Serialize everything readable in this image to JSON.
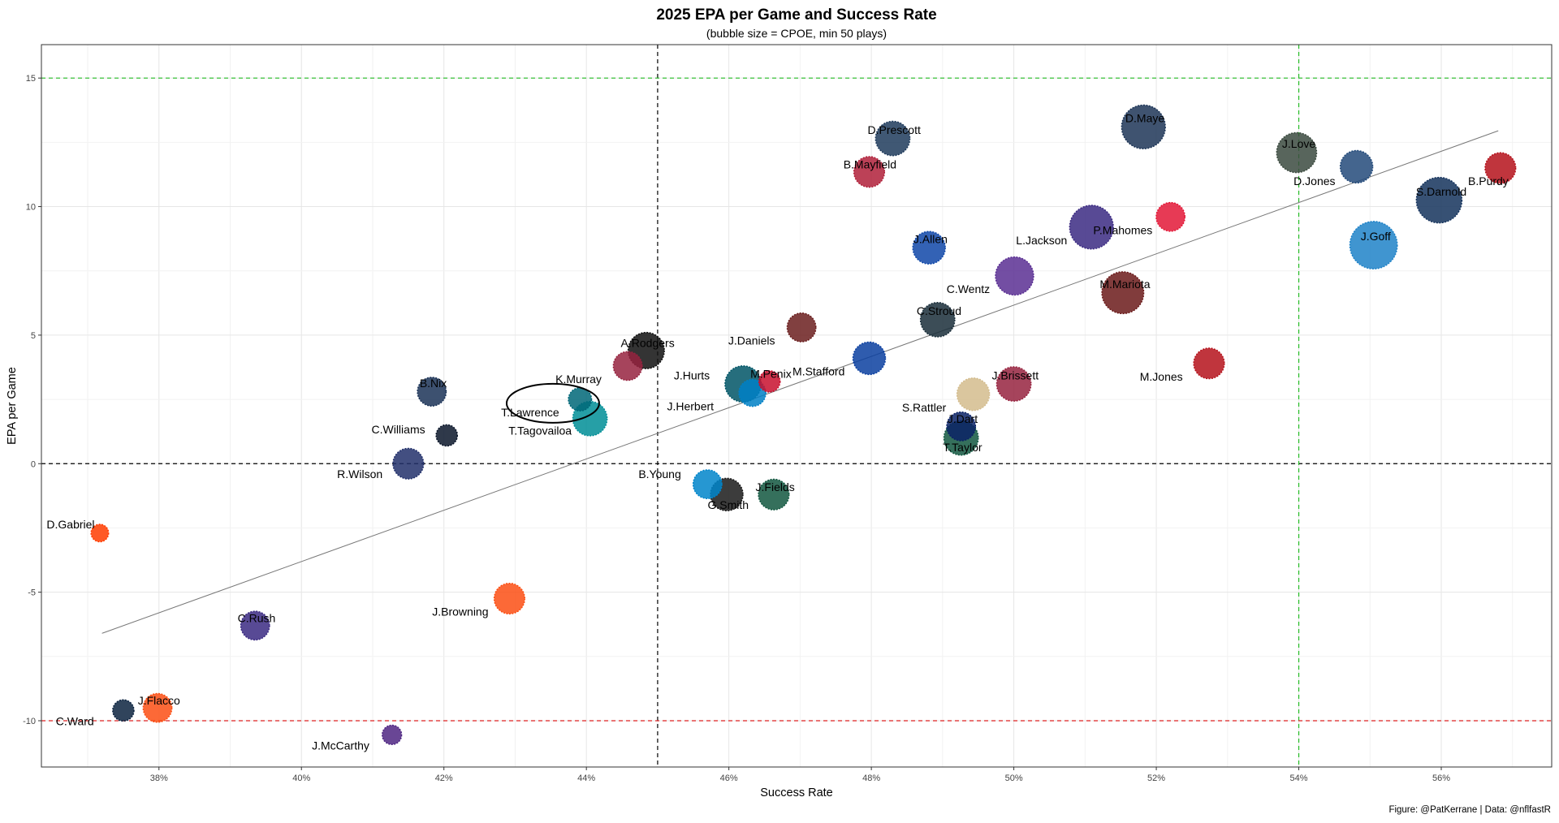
{
  "chart_data": {
    "type": "scatter",
    "title": "2025 EPA per Game and Success Rate",
    "subtitle": "(bubble size = CPOE, min 50 plays)",
    "xlabel": "Success Rate",
    "ylabel": "EPA per Game",
    "caption": "Figure: @PatKerrane | Data: @nflfastR",
    "xlim": [
      0.3635,
      0.5755
    ],
    "ylim": [
      -11.8,
      16.3
    ],
    "x_ticks": [
      {
        "value": 0.38,
        "label": "38%"
      },
      {
        "value": 0.4,
        "label": "40%"
      },
      {
        "value": 0.42,
        "label": "42%"
      },
      {
        "value": 0.44,
        "label": "44%"
      },
      {
        "value": 0.46,
        "label": "46%"
      },
      {
        "value": 0.48,
        "label": "48%"
      },
      {
        "value": 0.5,
        "label": "50%"
      },
      {
        "value": 0.52,
        "label": "52%"
      },
      {
        "value": 0.54,
        "label": "54%"
      },
      {
        "value": 0.56,
        "label": "56%"
      }
    ],
    "y_ticks": [
      {
        "value": -10,
        "label": "-10"
      },
      {
        "value": -5,
        "label": "-5"
      },
      {
        "value": 0,
        "label": "0"
      },
      {
        "value": 5,
        "label": "5"
      },
      {
        "value": 10,
        "label": "10"
      },
      {
        "value": 15,
        "label": "15"
      }
    ],
    "grid": true,
    "reference_lines": [
      {
        "axis": "x",
        "value": 0.45,
        "color": "#000000",
        "style": "dashed"
      },
      {
        "axis": "y",
        "value": 0,
        "color": "#000000",
        "style": "dashed"
      },
      {
        "axis": "x",
        "value": 0.54,
        "color": "#22bb22",
        "style": "dashed"
      },
      {
        "axis": "y",
        "value": 15,
        "color": "#22bb22",
        "style": "dashed"
      },
      {
        "axis": "y",
        "value": -10,
        "color": "#dd2222",
        "style": "dashed"
      }
    ],
    "trend_line": {
      "x": [
        0.372,
        0.568
      ],
      "y": [
        -6.6,
        12.95
      ],
      "color": "#777777"
    },
    "highlight": {
      "label": "T.Lawrence",
      "shape": "ellipse",
      "x": 0.4353,
      "y": 2.35
    },
    "points": [
      {
        "label": "D.Maye",
        "x": 0.5182,
        "y": 13.1,
        "size": 9.5,
        "color": "#1d3557",
        "lx": 0.5184,
        "ly": 13.4
      },
      {
        "label": "D.Prescott",
        "x": 0.483,
        "y": 12.65,
        "size": 7.0,
        "color": "#1f3b5c",
        "lx": 0.4832,
        "ly": 12.95
      },
      {
        "label": "J.Love",
        "x": 0.5397,
        "y": 12.1,
        "size": 8.5,
        "color": "#3b4a3f",
        "lx": 0.54,
        "ly": 12.4
      },
      {
        "label": "D.Jones",
        "x": 0.5481,
        "y": 11.55,
        "size": 6.5,
        "color": "#234a7a",
        "lx": 0.5422,
        "ly": 10.95
      },
      {
        "label": "B.Purdy",
        "x": 0.5683,
        "y": 11.5,
        "size": 6.0,
        "color": "#b5121b",
        "lx": 0.5666,
        "ly": 10.95
      },
      {
        "label": "B.Mayfield",
        "x": 0.4797,
        "y": 11.35,
        "size": 6.0,
        "color": "#b0203a",
        "lx": 0.4798,
        "ly": 11.6
      },
      {
        "label": "S.Darnold",
        "x": 0.5597,
        "y": 10.25,
        "size": 10.0,
        "color": "#14325c",
        "lx": 0.56,
        "ly": 10.55
      },
      {
        "label": "P.Mahomes",
        "x": 0.522,
        "y": 9.6,
        "size": 5.5,
        "color": "#e31837",
        "lx": 0.5153,
        "ly": 9.05
      },
      {
        "label": "L.Jackson",
        "x": 0.5109,
        "y": 9.2,
        "size": 9.5,
        "color": "#3b2a82",
        "lx": 0.5039,
        "ly": 8.65
      },
      {
        "label": "J.Goff",
        "x": 0.5505,
        "y": 8.5,
        "size": 10.5,
        "color": "#1f82c8",
        "lx": 0.5508,
        "ly": 8.8
      },
      {
        "label": "J.Allen",
        "x": 0.4881,
        "y": 8.4,
        "size": 6.5,
        "color": "#0f47a8",
        "lx": 0.4883,
        "ly": 8.7
      },
      {
        "label": "C.Wentz",
        "x": 0.5001,
        "y": 7.3,
        "size": 8.0,
        "color": "#5a2f93",
        "lx": 0.4936,
        "ly": 6.75
      },
      {
        "label": "M.Mariota",
        "x": 0.5153,
        "y": 6.65,
        "size": 9.0,
        "color": "#6b1a1a",
        "lx": 0.5156,
        "ly": 6.95
      },
      {
        "label": "C.Stroud",
        "x": 0.4893,
        "y": 5.6,
        "size": 7.0,
        "color": "#1a2e3a",
        "lx": 0.4895,
        "ly": 5.9
      },
      {
        "label": "J.Daniels",
        "x": 0.4702,
        "y": 5.3,
        "size": 5.5,
        "color": "#6b1e1e",
        "lx": 0.4632,
        "ly": 4.75
      },
      {
        "label": "A.Rodgers",
        "x": 0.4484,
        "y": 4.4,
        "size": 7.5,
        "color": "#111111",
        "lx": 0.4486,
        "ly": 4.65
      },
      {
        "label": "M.Stafford",
        "x": 0.4797,
        "y": 4.1,
        "size": 6.5,
        "color": "#0b3fa0",
        "lx": 0.4726,
        "ly": 3.55
      },
      {
        "label": "M.Jones",
        "x": 0.5274,
        "y": 3.9,
        "size": 6.0,
        "color": "#b5121b",
        "lx": 0.5207,
        "ly": 3.35
      },
      {
        "label": "K.Murray",
        "x": 0.4458,
        "y": 3.8,
        "size": 5.5,
        "color": "#97233f",
        "lx": 0.4389,
        "ly": 3.25
      },
      {
        "label": "M.Penix",
        "x": 0.4657,
        "y": 3.2,
        "size": 3.5,
        "color": "#c8102e",
        "lx": 0.4659,
        "ly": 3.45
      },
      {
        "label": "J.Hurts",
        "x": 0.462,
        "y": 3.1,
        "size": 7.5,
        "color": "#005566",
        "lx": 0.4548,
        "ly": 3.4
      },
      {
        "label": "J.Brissett",
        "x": 0.5,
        "y": 3.1,
        "size": 7.0,
        "color": "#97233f",
        "lx": 0.5002,
        "ly": 3.4
      },
      {
        "label": "B.Nix",
        "x": 0.4183,
        "y": 2.8,
        "size": 5.5,
        "color": "#1b3357",
        "lx": 0.4185,
        "ly": 3.1
      },
      {
        "label": "J.Herbert",
        "x": 0.4633,
        "y": 2.75,
        "size": 5.0,
        "color": "#0080c6",
        "lx": 0.4546,
        "ly": 2.2
      },
      {
        "label": "S.Rattler",
        "x": 0.4943,
        "y": 2.7,
        "size": 6.5,
        "color": "#d3bc8d",
        "lx": 0.4874,
        "ly": 2.15
      },
      {
        "label": "T.Lawrence",
        "x": 0.4391,
        "y": 2.5,
        "size": 4.0,
        "color": "#006778",
        "lx": 0.4321,
        "ly": 1.95
      },
      {
        "label": "T.Tagovailoa",
        "x": 0.4405,
        "y": 1.75,
        "size": 7.0,
        "color": "#008e97",
        "lx": 0.4335,
        "ly": 1.25
      },
      {
        "label": "J.Dart",
        "x": 0.4926,
        "y": 1.45,
        "size": 5.5,
        "color": "#0b2265",
        "lx": 0.4928,
        "ly": 1.7
      },
      {
        "label": "C.Williams",
        "x": 0.4204,
        "y": 1.1,
        "size": 3.5,
        "color": "#0b162a",
        "lx": 0.4136,
        "ly": 1.3
      },
      {
        "label": "T.Taylor",
        "x": 0.4926,
        "y": 1.0,
        "size": 7.0,
        "color": "#125740",
        "lx": 0.4928,
        "ly": 0.6
      },
      {
        "label": "R.Wilson",
        "x": 0.415,
        "y": 0.0,
        "size": 6.0,
        "color": "#22306b",
        "lx": 0.4082,
        "ly": -0.45
      },
      {
        "label": "B.Young",
        "x": 0.457,
        "y": -0.8,
        "size": 5.5,
        "color": "#0085ca",
        "lx": 0.4503,
        "ly": -0.45
      },
      {
        "label": "J.Fields",
        "x": 0.4663,
        "y": -1.2,
        "size": 6.0,
        "color": "#125740",
        "lx": 0.4665,
        "ly": -0.95
      },
      {
        "label": "G.Smith",
        "x": 0.4597,
        "y": -1.2,
        "size": 6.5,
        "color": "#1a1a1a",
        "lx": 0.4599,
        "ly": -1.65
      },
      {
        "label": "D.Gabriel",
        "x": 0.3717,
        "y": -2.7,
        "size": 2.5,
        "color": "#ff3c00",
        "lx": 0.3676,
        "ly": -2.4
      },
      {
        "label": "J.Browning",
        "x": 0.4292,
        "y": -5.25,
        "size": 6.0,
        "color": "#fb4f14",
        "lx": 0.4223,
        "ly": -5.8
      },
      {
        "label": "C.Rush",
        "x": 0.3935,
        "y": -6.3,
        "size": 5.5,
        "color": "#3b2a82",
        "lx": 0.3937,
        "ly": -6.05
      },
      {
        "label": "J.Flacco",
        "x": 0.3798,
        "y": -9.5,
        "size": 5.5,
        "color": "#fb4f14",
        "lx": 0.38,
        "ly": -9.25
      },
      {
        "label": "C.Ward",
        "x": 0.375,
        "y": -9.6,
        "size": 3.5,
        "color": "#0c2340",
        "lx": 0.3682,
        "ly": -10.05
      },
      {
        "label": "J.McCarthy",
        "x": 0.4127,
        "y": -10.55,
        "size": 3.0,
        "color": "#4f2683",
        "lx": 0.4055,
        "ly": -11.0
      }
    ]
  }
}
